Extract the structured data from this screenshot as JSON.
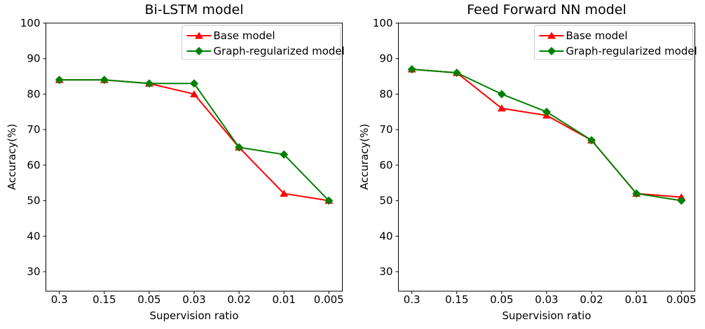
{
  "figure": {
    "background": "#ffffff",
    "axis_color": "#000000",
    "legend_border_color": "#cccccc",
    "legend_background": "#ffffff"
  },
  "chart_data": [
    {
      "type": "line",
      "title": "Bi-LSTM model",
      "xlabel": "Supervision ratio",
      "ylabel": "Accuracy(%)",
      "categories": [
        "0.3",
        "0.15",
        "0.05",
        "0.03",
        "0.02",
        "0.01",
        "0.005"
      ],
      "yticks": [
        30,
        40,
        50,
        60,
        70,
        80,
        90,
        100
      ],
      "ylim": [
        24.5,
        100
      ],
      "grid": false,
      "legend_position": "upper right",
      "series": [
        {
          "name": "Base model",
          "color": "#ff0000",
          "marker": "triangle",
          "values": [
            84,
            84,
            83,
            80,
            65,
            52,
            50
          ]
        },
        {
          "name": "Graph-regularized model",
          "color": "#008000",
          "marker": "diamond",
          "values": [
            84,
            84,
            83,
            83,
            65,
            63,
            50
          ]
        }
      ]
    },
    {
      "type": "line",
      "title": "Feed Forward NN model",
      "xlabel": "Supervision ratio",
      "ylabel": "Accuracy(%)",
      "categories": [
        "0.3",
        "0.15",
        "0.05",
        "0.03",
        "0.02",
        "0.01",
        "0.005"
      ],
      "yticks": [
        30,
        40,
        50,
        60,
        70,
        80,
        90,
        100
      ],
      "ylim": [
        24.5,
        100
      ],
      "grid": false,
      "legend_position": "upper right",
      "series": [
        {
          "name": "Base model",
          "color": "#ff0000",
          "marker": "triangle",
          "values": [
            87,
            86,
            76,
            74,
            67,
            52,
            51
          ]
        },
        {
          "name": "Graph-regularized model",
          "color": "#008000",
          "marker": "diamond",
          "values": [
            87,
            86,
            80,
            75,
            67,
            52,
            50
          ]
        }
      ]
    }
  ]
}
